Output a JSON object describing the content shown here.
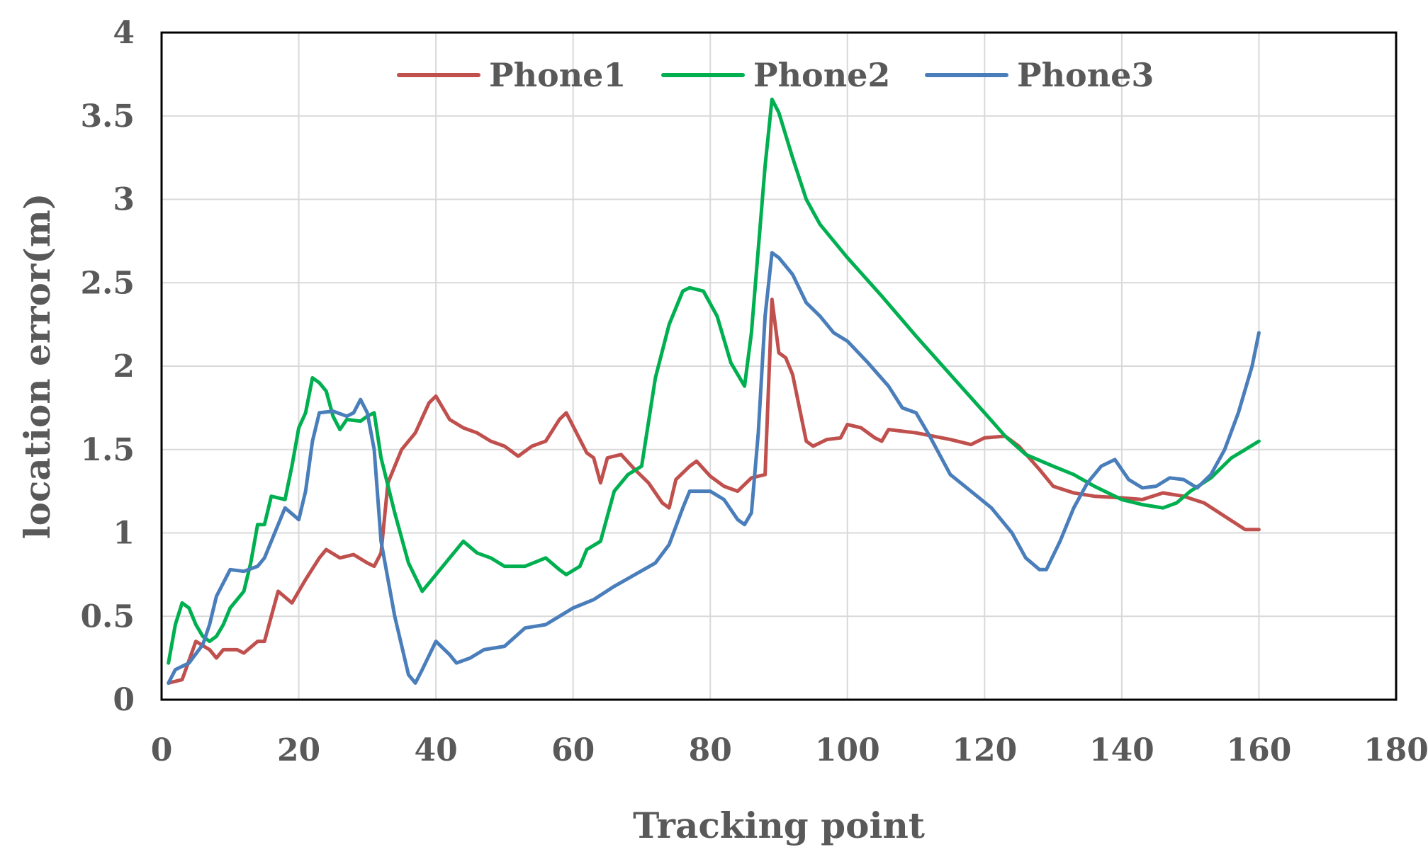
{
  "chart_data": {
    "type": "line",
    "title": "",
    "xlabel": "Tracking point",
    "ylabel": "location error(m)",
    "xlim": [
      0,
      180
    ],
    "ylim": [
      0,
      4
    ],
    "xticks": [
      0,
      20,
      40,
      60,
      80,
      100,
      120,
      140,
      160,
      180
    ],
    "yticks": [
      0,
      0.5,
      1,
      1.5,
      2,
      2.5,
      3,
      3.5,
      4
    ],
    "xtick_labels": [
      "0",
      "20",
      "40",
      "60",
      "80",
      "100",
      "120",
      "140",
      "160",
      "180"
    ],
    "ytick_labels": [
      "0",
      "0.5",
      "1",
      "1.5",
      "2",
      "2.5",
      "3",
      "3.5",
      "4"
    ],
    "grid": true,
    "legend": "top-center",
    "series": [
      {
        "name": "Phone1",
        "color": "#c0504d",
        "points": [
          [
            1,
            0.1
          ],
          [
            3,
            0.12
          ],
          [
            5,
            0.35
          ],
          [
            7,
            0.3
          ],
          [
            8,
            0.25
          ],
          [
            9,
            0.3
          ],
          [
            11,
            0.3
          ],
          [
            12,
            0.28
          ],
          [
            14,
            0.35
          ],
          [
            15,
            0.35
          ],
          [
            16,
            0.5
          ],
          [
            17,
            0.65
          ],
          [
            19,
            0.58
          ],
          [
            21,
            0.72
          ],
          [
            23,
            0.85
          ],
          [
            24,
            0.9
          ],
          [
            26,
            0.85
          ],
          [
            28,
            0.87
          ],
          [
            30,
            0.82
          ],
          [
            31,
            0.8
          ],
          [
            32,
            0.88
          ],
          [
            33,
            1.3
          ],
          [
            35,
            1.5
          ],
          [
            37,
            1.6
          ],
          [
            39,
            1.78
          ],
          [
            40,
            1.82
          ],
          [
            42,
            1.68
          ],
          [
            44,
            1.63
          ],
          [
            46,
            1.6
          ],
          [
            48,
            1.55
          ],
          [
            50,
            1.52
          ],
          [
            52,
            1.46
          ],
          [
            54,
            1.52
          ],
          [
            56,
            1.55
          ],
          [
            58,
            1.68
          ],
          [
            59,
            1.72
          ],
          [
            60,
            1.64
          ],
          [
            62,
            1.48
          ],
          [
            63,
            1.45
          ],
          [
            64,
            1.3
          ],
          [
            65,
            1.45
          ],
          [
            67,
            1.47
          ],
          [
            69,
            1.38
          ],
          [
            71,
            1.3
          ],
          [
            73,
            1.18
          ],
          [
            74,
            1.15
          ],
          [
            75,
            1.32
          ],
          [
            77,
            1.4
          ],
          [
            78,
            1.43
          ],
          [
            80,
            1.34
          ],
          [
            82,
            1.28
          ],
          [
            84,
            1.25
          ],
          [
            86,
            1.33
          ],
          [
            88,
            1.35
          ],
          [
            89,
            2.4
          ],
          [
            90,
            2.08
          ],
          [
            91,
            2.05
          ],
          [
            92,
            1.95
          ],
          [
            94,
            1.55
          ],
          [
            95,
            1.52
          ],
          [
            97,
            1.56
          ],
          [
            99,
            1.57
          ],
          [
            100,
            1.65
          ],
          [
            102,
            1.63
          ],
          [
            104,
            1.57
          ],
          [
            105,
            1.55
          ],
          [
            106,
            1.62
          ],
          [
            110,
            1.6
          ],
          [
            115,
            1.56
          ],
          [
            118,
            1.53
          ],
          [
            120,
            1.57
          ],
          [
            123,
            1.58
          ],
          [
            125,
            1.52
          ],
          [
            128,
            1.38
          ],
          [
            130,
            1.28
          ],
          [
            133,
            1.24
          ],
          [
            136,
            1.22
          ],
          [
            140,
            1.21
          ],
          [
            143,
            1.2
          ],
          [
            146,
            1.24
          ],
          [
            149,
            1.22
          ],
          [
            152,
            1.18
          ],
          [
            155,
            1.1
          ],
          [
            158,
            1.02
          ],
          [
            160,
            1.02
          ]
        ]
      },
      {
        "name": "Phone2",
        "color": "#00b050",
        "points": [
          [
            1,
            0.22
          ],
          [
            2,
            0.45
          ],
          [
            3,
            0.58
          ],
          [
            4,
            0.55
          ],
          [
            5,
            0.45
          ],
          [
            6,
            0.38
          ],
          [
            7,
            0.35
          ],
          [
            8,
            0.38
          ],
          [
            9,
            0.45
          ],
          [
            10,
            0.55
          ],
          [
            12,
            0.65
          ],
          [
            13,
            0.82
          ],
          [
            14,
            1.05
          ],
          [
            15,
            1.05
          ],
          [
            16,
            1.22
          ],
          [
            18,
            1.2
          ],
          [
            19,
            1.4
          ],
          [
            20,
            1.63
          ],
          [
            21,
            1.72
          ],
          [
            22,
            1.93
          ],
          [
            23,
            1.9
          ],
          [
            24,
            1.85
          ],
          [
            25,
            1.7
          ],
          [
            26,
            1.62
          ],
          [
            27,
            1.68
          ],
          [
            29,
            1.67
          ],
          [
            30,
            1.7
          ],
          [
            31,
            1.72
          ],
          [
            32,
            1.45
          ],
          [
            34,
            1.12
          ],
          [
            36,
            0.82
          ],
          [
            38,
            0.65
          ],
          [
            40,
            0.75
          ],
          [
            42,
            0.85
          ],
          [
            44,
            0.95
          ],
          [
            46,
            0.88
          ],
          [
            48,
            0.85
          ],
          [
            50,
            0.8
          ],
          [
            53,
            0.8
          ],
          [
            56,
            0.85
          ],
          [
            58,
            0.78
          ],
          [
            59,
            0.75
          ],
          [
            61,
            0.8
          ],
          [
            62,
            0.9
          ],
          [
            64,
            0.95
          ],
          [
            66,
            1.25
          ],
          [
            68,
            1.35
          ],
          [
            70,
            1.4
          ],
          [
            72,
            1.93
          ],
          [
            74,
            2.25
          ],
          [
            76,
            2.45
          ],
          [
            77,
            2.47
          ],
          [
            79,
            2.45
          ],
          [
            81,
            2.3
          ],
          [
            83,
            2.02
          ],
          [
            85,
            1.88
          ],
          [
            86,
            2.2
          ],
          [
            88,
            3.2
          ],
          [
            89,
            3.6
          ],
          [
            90,
            3.52
          ],
          [
            92,
            3.25
          ],
          [
            94,
            3.0
          ],
          [
            96,
            2.85
          ],
          [
            100,
            2.65
          ],
          [
            105,
            2.42
          ],
          [
            110,
            2.18
          ],
          [
            115,
            1.95
          ],
          [
            120,
            1.72
          ],
          [
            123,
            1.58
          ],
          [
            126,
            1.47
          ],
          [
            130,
            1.4
          ],
          [
            133,
            1.35
          ],
          [
            136,
            1.28
          ],
          [
            140,
            1.2
          ],
          [
            143,
            1.17
          ],
          [
            146,
            1.15
          ],
          [
            148,
            1.18
          ],
          [
            150,
            1.25
          ],
          [
            153,
            1.33
          ],
          [
            156,
            1.45
          ],
          [
            158,
            1.5
          ],
          [
            160,
            1.55
          ]
        ]
      },
      {
        "name": "Phone3",
        "color": "#4a7ebb",
        "points": [
          [
            1,
            0.1
          ],
          [
            2,
            0.18
          ],
          [
            3,
            0.2
          ],
          [
            4,
            0.22
          ],
          [
            6,
            0.33
          ],
          [
            7,
            0.45
          ],
          [
            8,
            0.62
          ],
          [
            9,
            0.7
          ],
          [
            10,
            0.78
          ],
          [
            12,
            0.77
          ],
          [
            14,
            0.8
          ],
          [
            15,
            0.85
          ],
          [
            17,
            1.05
          ],
          [
            18,
            1.15
          ],
          [
            20,
            1.08
          ],
          [
            21,
            1.25
          ],
          [
            22,
            1.55
          ],
          [
            23,
            1.72
          ],
          [
            25,
            1.73
          ],
          [
            27,
            1.7
          ],
          [
            28,
            1.72
          ],
          [
            29,
            1.8
          ],
          [
            30,
            1.72
          ],
          [
            31,
            1.5
          ],
          [
            32,
            0.95
          ],
          [
            34,
            0.5
          ],
          [
            36,
            0.15
          ],
          [
            37,
            0.1
          ],
          [
            38,
            0.18
          ],
          [
            40,
            0.35
          ],
          [
            42,
            0.27
          ],
          [
            43,
            0.22
          ],
          [
            45,
            0.25
          ],
          [
            47,
            0.3
          ],
          [
            50,
            0.32
          ],
          [
            53,
            0.43
          ],
          [
            56,
            0.45
          ],
          [
            58,
            0.5
          ],
          [
            60,
            0.55
          ],
          [
            63,
            0.6
          ],
          [
            66,
            0.68
          ],
          [
            69,
            0.75
          ],
          [
            72,
            0.82
          ],
          [
            74,
            0.93
          ],
          [
            76,
            1.15
          ],
          [
            77,
            1.25
          ],
          [
            80,
            1.25
          ],
          [
            82,
            1.2
          ],
          [
            84,
            1.08
          ],
          [
            85,
            1.05
          ],
          [
            86,
            1.12
          ],
          [
            87,
            1.6
          ],
          [
            88,
            2.3
          ],
          [
            89,
            2.68
          ],
          [
            90,
            2.65
          ],
          [
            92,
            2.55
          ],
          [
            94,
            2.38
          ],
          [
            96,
            2.3
          ],
          [
            98,
            2.2
          ],
          [
            100,
            2.15
          ],
          [
            103,
            2.02
          ],
          [
            106,
            1.88
          ],
          [
            108,
            1.75
          ],
          [
            110,
            1.72
          ],
          [
            112,
            1.58
          ],
          [
            115,
            1.35
          ],
          [
            118,
            1.25
          ],
          [
            121,
            1.15
          ],
          [
            124,
            1.0
          ],
          [
            126,
            0.85
          ],
          [
            128,
            0.78
          ],
          [
            129,
            0.78
          ],
          [
            131,
            0.95
          ],
          [
            133,
            1.15
          ],
          [
            135,
            1.3
          ],
          [
            137,
            1.4
          ],
          [
            139,
            1.44
          ],
          [
            141,
            1.32
          ],
          [
            143,
            1.27
          ],
          [
            145,
            1.28
          ],
          [
            147,
            1.33
          ],
          [
            149,
            1.32
          ],
          [
            151,
            1.27
          ],
          [
            153,
            1.35
          ],
          [
            155,
            1.5
          ],
          [
            157,
            1.72
          ],
          [
            159,
            2.0
          ],
          [
            160,
            2.2
          ]
        ]
      }
    ]
  }
}
